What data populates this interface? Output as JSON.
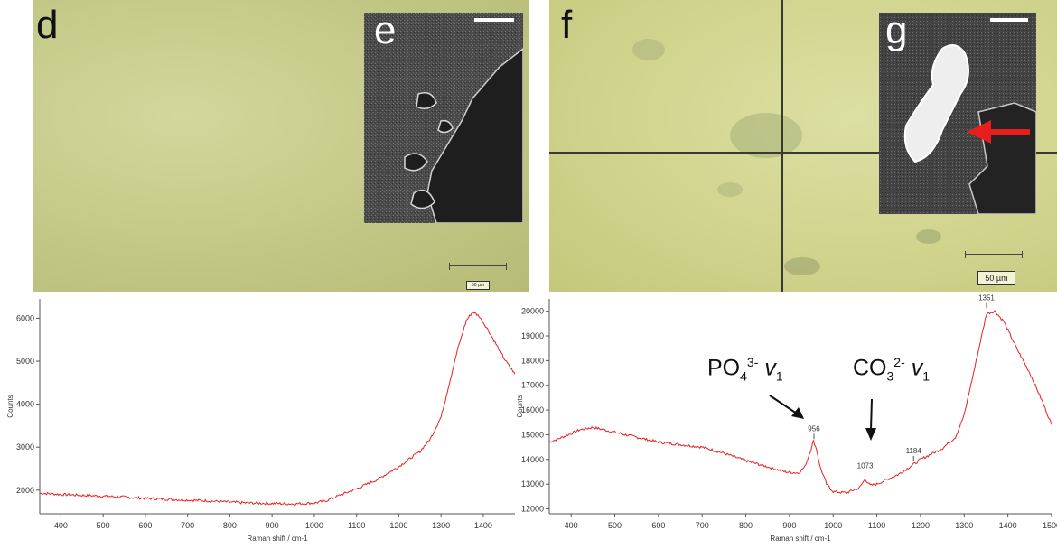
{
  "panels": {
    "d": {
      "letter": "d",
      "scale_label": "50 µm"
    },
    "e": {
      "letter": "e"
    },
    "f": {
      "letter": "f",
      "scale_label": "50 µm"
    },
    "g": {
      "letter": "g"
    }
  },
  "colors": {
    "spectrum": "#e8211f",
    "arrow_red": "#e81e1e"
  },
  "chart_data": [
    {
      "type": "line",
      "xlabel": "Raman shift / cm-1",
      "ylabel": "Counts",
      "xlim": [
        350,
        1475
      ],
      "ylim": [
        1450,
        6450
      ],
      "xticks": [
        400,
        500,
        600,
        700,
        800,
        900,
        1000,
        1100,
        1200,
        1300,
        1400
      ],
      "yticks": [
        2000,
        3000,
        4000,
        5000,
        6000
      ],
      "grid": false,
      "series": [
        {
          "points": [
            [
              350,
              1930
            ],
            [
              400,
              1900
            ],
            [
              450,
              1880
            ],
            [
              500,
              1860
            ],
            [
              550,
              1840
            ],
            [
              600,
              1810
            ],
            [
              650,
              1790
            ],
            [
              700,
              1770
            ],
            [
              750,
              1750
            ],
            [
              800,
              1720
            ],
            [
              850,
              1700
            ],
            [
              900,
              1690
            ],
            [
              950,
              1680
            ],
            [
              1000,
              1700
            ],
            [
              1030,
              1760
            ],
            [
              1060,
              1880
            ],
            [
              1100,
              2030
            ],
            [
              1150,
              2250
            ],
            [
              1200,
              2550
            ],
            [
              1250,
              2900
            ],
            [
              1275,
              3200
            ],
            [
              1300,
              3700
            ],
            [
              1320,
              4500
            ],
            [
              1340,
              5300
            ],
            [
              1360,
              5950
            ],
            [
              1375,
              6150
            ],
            [
              1390,
              6050
            ],
            [
              1410,
              5750
            ],
            [
              1430,
              5400
            ],
            [
              1450,
              5050
            ],
            [
              1475,
              4700
            ]
          ]
        }
      ],
      "annotations": []
    },
    {
      "type": "line",
      "xlabel": "Raman shift / cm-1",
      "ylabel": "Counts",
      "xlim": [
        350,
        1500
      ],
      "ylim": [
        11800,
        20500
      ],
      "xticks": [
        400,
        500,
        600,
        700,
        800,
        900,
        1000,
        1100,
        1200,
        1300,
        1400,
        1500
      ],
      "yticks": [
        12000,
        13000,
        14000,
        15000,
        16000,
        17000,
        18000,
        19000,
        20000
      ],
      "grid": false,
      "series": [
        {
          "points": [
            [
              350,
              14700
            ],
            [
              380,
              14900
            ],
            [
              420,
              15200
            ],
            [
              450,
              15300
            ],
            [
              500,
              15100
            ],
            [
              550,
              14900
            ],
            [
              600,
              14700
            ],
            [
              650,
              14600
            ],
            [
              700,
              14500
            ],
            [
              750,
              14250
            ],
            [
              800,
              13950
            ],
            [
              850,
              13700
            ],
            [
              890,
              13500
            ],
            [
              920,
              13450
            ],
            [
              935,
              13700
            ],
            [
              945,
              14200
            ],
            [
              955,
              14750
            ],
            [
              962,
              14400
            ],
            [
              970,
              13700
            ],
            [
              985,
              13000
            ],
            [
              1000,
              12700
            ],
            [
              1030,
              12650
            ],
            [
              1060,
              12850
            ],
            [
              1073,
              13200
            ],
            [
              1085,
              12950
            ],
            [
              1100,
              13000
            ],
            [
              1150,
              13400
            ],
            [
              1184,
              13800
            ],
            [
              1200,
              14000
            ],
            [
              1250,
              14450
            ],
            [
              1280,
              14900
            ],
            [
              1300,
              15800
            ],
            [
              1320,
              17400
            ],
            [
              1340,
              19000
            ],
            [
              1351,
              19900
            ],
            [
              1370,
              20000
            ],
            [
              1390,
              19600
            ],
            [
              1420,
              18500
            ],
            [
              1450,
              17500
            ],
            [
              1480,
              16300
            ],
            [
              1500,
              15400
            ]
          ]
        }
      ],
      "annotations": [
        {
          "x": 956,
          "y": 14750,
          "label": "956"
        },
        {
          "x": 1073,
          "y": 13250,
          "label": "1073"
        },
        {
          "x": 1184,
          "y": 13850,
          "label": "1184"
        },
        {
          "x": 1351,
          "y": 20050,
          "label": "1351"
        }
      ],
      "callouts": {
        "phosphate": {
          "formula": "PO",
          "sub": "4",
          "sup": "3-",
          "mode": "v",
          "mode_sub": "1"
        },
        "carbonate": {
          "formula": "CO",
          "sub": "3",
          "sup": "2-",
          "mode": "v",
          "mode_sub": "1"
        }
      }
    }
  ]
}
